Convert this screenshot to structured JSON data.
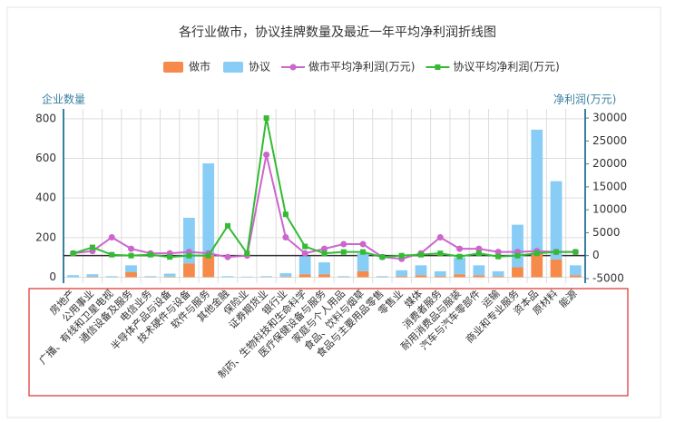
{
  "chart_data": {
    "type": "bar_line",
    "title": "各行业做市，协议挂牌数量及最近一年平均净利润折线图",
    "y_label": "企业数量",
    "y2_label": "净利润(万元)",
    "categories": [
      "房地产",
      "公用事业",
      "广播、有线和卫星电视",
      "通信设备及服务",
      "电信业务",
      "半导体产品与设备",
      "技术硬件与设备",
      "软件与服务",
      "其他金融",
      "保险业",
      "证券期货业",
      "银行业",
      "制药、生物科技和生命科学",
      "医疗保健设备与服务",
      "家庭与个人用品",
      "食品、饮料与烟草",
      "食品与主要用品零售",
      "零售业",
      "媒体",
      "消费者服务",
      "耐用消费品与服装",
      "汽车与汽车零部件",
      "运输",
      "商业和专业服务",
      "资本品",
      "原材料",
      "能源"
    ],
    "series": [
      {
        "name": "做市",
        "kind": "bar",
        "color": "#f58a4b",
        "values": [
          0,
          2,
          0,
          25,
          1,
          3,
          70,
          110,
          0,
          0,
          1,
          3,
          15,
          15,
          1,
          30,
          1,
          5,
          10,
          5,
          15,
          10,
          5,
          50,
          120,
          90,
          10
        ]
      },
      {
        "name": "协议",
        "kind": "bar",
        "color": "#87cdf5",
        "values": [
          10,
          13,
          5,
          35,
          4,
          15,
          230,
          465,
          5,
          3,
          4,
          17,
          90,
          60,
          4,
          90,
          4,
          30,
          50,
          25,
          85,
          50,
          25,
          215,
          625,
          395,
          50
        ]
      },
      {
        "name": "做市平均净利润(万元)",
        "kind": "line",
        "axis": "y2",
        "color": "#cc66cc",
        "values": [
          500,
          1000,
          4000,
          1500,
          500,
          500,
          800,
          500,
          -300,
          0,
          22000,
          4000,
          500,
          1500,
          2500,
          2500,
          -300,
          -700,
          500,
          4000,
          1500,
          1500,
          800,
          800,
          1000,
          800,
          800
        ]
      },
      {
        "name": "协议平均净利润(万元)",
        "kind": "line",
        "axis": "y2",
        "color": "#33bb33",
        "values": [
          500,
          1800,
          200,
          0,
          200,
          -300,
          0,
          0,
          6500,
          500,
          30000,
          9000,
          2000,
          500,
          800,
          800,
          -300,
          0,
          200,
          500,
          -200,
          500,
          -200,
          0,
          500,
          800,
          800
        ]
      }
    ],
    "ylim": [
      -30,
      850
    ],
    "yticks": [
      0,
      200,
      400,
      600,
      800
    ],
    "y2lim": [
      -6000,
      32000
    ],
    "y2ticks": [
      -5000,
      0,
      5000,
      10000,
      15000,
      20000,
      25000,
      30000
    ],
    "grid": true
  }
}
